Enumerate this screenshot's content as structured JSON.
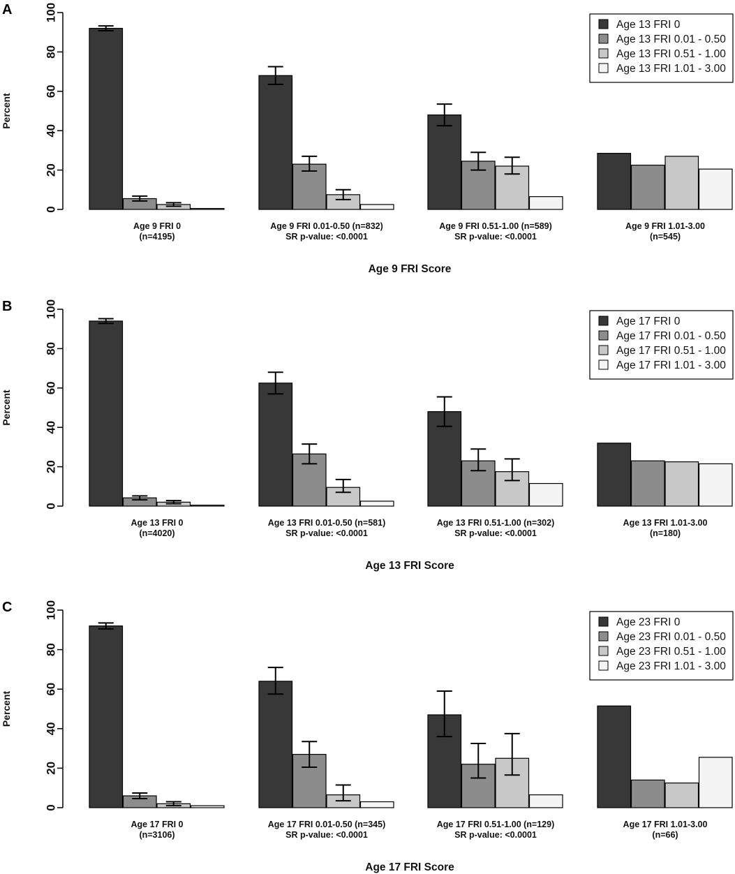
{
  "chart_data": [
    {
      "type": "bar",
      "panel": "A",
      "ylabel": "Percent",
      "xlabel": "Age 9 FRI Score",
      "ylim": [
        0,
        100
      ],
      "yticks": [
        "0",
        "20",
        "40",
        "60",
        "80",
        "100"
      ],
      "groups": [
        {
          "label": "Age 9 FRI 0",
          "sublabel": "(n=4195)",
          "values": [
            92,
            5.5,
            2.5,
            0.5
          ],
          "err_low": [
            90.8,
            4.3,
            1.6,
            null
          ],
          "err_high": [
            93.2,
            6.8,
            3.4,
            null
          ]
        },
        {
          "label": "Age 9 FRI 0.01-0.50 (n=832)",
          "sublabel": "SR p-value: <0.0001",
          "values": [
            68,
            23,
            7.5,
            2.5
          ],
          "err_low": [
            63.5,
            19.5,
            5,
            null
          ],
          "err_high": [
            72.5,
            27,
            10,
            null
          ]
        },
        {
          "label": "Age 9 FRI 0.51-1.00 (n=589)",
          "sublabel": "SR p-value: <0.0001",
          "values": [
            48,
            24.5,
            22,
            6.5
          ],
          "err_low": [
            42.5,
            20,
            18,
            null
          ],
          "err_high": [
            53.5,
            29,
            26.5,
            null
          ]
        },
        {
          "label": "Age 9 FRI 1.01-3.00",
          "sublabel": "(n=545)",
          "values": [
            28.5,
            22.5,
            27,
            20.5
          ],
          "err_low": [
            null,
            null,
            null,
            null
          ],
          "err_high": [
            null,
            null,
            null,
            null
          ]
        }
      ],
      "legend": [
        "Age 13 FRI 0",
        "Age 13 FRI 0.01 - 0.50",
        "Age 13 FRI 0.51 - 1.00",
        "Age 13 FRI 1.01 - 3.00"
      ]
    },
    {
      "type": "bar",
      "panel": "B",
      "ylabel": "Percent",
      "xlabel": "Age 13 FRI Score",
      "ylim": [
        0,
        100
      ],
      "yticks": [
        "0",
        "20",
        "40",
        "60",
        "80",
        "100"
      ],
      "groups": [
        {
          "label": "Age 13 FRI 0",
          "sublabel": "(n=4020)",
          "values": [
            94,
            4.2,
            2,
            0.5
          ],
          "err_low": [
            92.8,
            3.2,
            1.2,
            null
          ],
          "err_high": [
            95.2,
            5.2,
            2.8,
            null
          ]
        },
        {
          "label": "Age 13 FRI 0.01-0.50 (n=581)",
          "sublabel": "SR p-value: <0.0001",
          "values": [
            62.5,
            26.5,
            9.5,
            2.5
          ],
          "err_low": [
            57,
            21.5,
            7,
            null
          ],
          "err_high": [
            68,
            31.5,
            13.5,
            null
          ]
        },
        {
          "label": "Age 13 FRI 0.51-1.00 (n=302)",
          "sublabel": "SR p-value: <0.0001",
          "values": [
            48,
            23,
            17.5,
            11.5
          ],
          "err_low": [
            40.5,
            18,
            13,
            null
          ],
          "err_high": [
            55.5,
            29,
            24,
            null
          ]
        },
        {
          "label": "Age 13 FRI 1.01-3.00",
          "sublabel": "(n=180)",
          "values": [
            32,
            23,
            22.5,
            21.5
          ],
          "err_low": [
            null,
            null,
            null,
            null
          ],
          "err_high": [
            null,
            null,
            null,
            null
          ]
        }
      ],
      "legend": [
        "Age 17 FRI 0",
        "Age 17 FRI 0.01 - 0.50",
        "Age 17 FRI 0.51 - 1.00",
        "Age 17 FRI 1.01 - 3.00"
      ]
    },
    {
      "type": "bar",
      "panel": "C",
      "ylabel": "Percent",
      "xlabel": "Age 17 FRI Score",
      "ylim": [
        0,
        100
      ],
      "yticks": [
        "0",
        "20",
        "40",
        "60",
        "80",
        "100"
      ],
      "groups": [
        {
          "label": "Age 17 FRI 0",
          "sublabel": "(n=3106)",
          "values": [
            92,
            6,
            2,
            1
          ],
          "err_low": [
            90.5,
            4.6,
            1,
            null
          ],
          "err_high": [
            93.5,
            7.4,
            3,
            null
          ]
        },
        {
          "label": "Age 17 FRI 0.01-0.50 (n=345)",
          "sublabel": "SR p-value: <0.0001",
          "values": [
            64,
            27,
            6.5,
            3
          ],
          "err_low": [
            57.5,
            20.5,
            3.5,
            null
          ],
          "err_high": [
            71,
            33.5,
            11.5,
            null
          ]
        },
        {
          "label": "Age 17 FRI 0.51-1.00 (n=129)",
          "sublabel": "SR p-value: <0.0001",
          "values": [
            47,
            22,
            25,
            6.5
          ],
          "err_low": [
            36,
            15,
            16.5,
            null
          ],
          "err_high": [
            59,
            32.5,
            37.5,
            null
          ]
        },
        {
          "label": "Age 17 FRI 1.01-3.00",
          "sublabel": "(n=66)",
          "values": [
            51.5,
            14,
            12.5,
            25.5
          ],
          "err_low": [
            null,
            null,
            null,
            null
          ],
          "err_high": [
            null,
            null,
            null,
            null
          ]
        }
      ],
      "legend": [
        "Age 23 FRI 0",
        "Age 23 FRI 0.01 - 0.50",
        "Age 23 FRI 0.51 - 1.00",
        "Age 23 FRI 1.01 - 3.00"
      ]
    }
  ],
  "colors": {
    "series": [
      "#383838",
      "#8c8c8c",
      "#c8c8c8",
      "#f4f4f4"
    ],
    "stroke": "#000000"
  }
}
